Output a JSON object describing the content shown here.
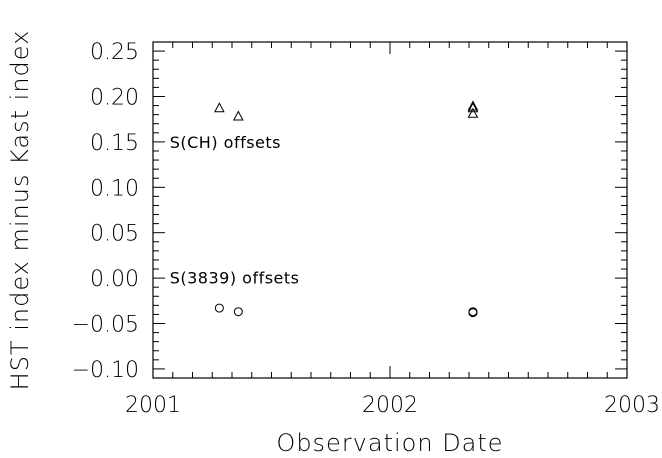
{
  "chart_data": {
    "type": "scatter",
    "title": "",
    "xlabel": "Observation Date",
    "ylabel": "HST index minus Kast index",
    "xlim": [
      2001,
      2003
    ],
    "ylim": [
      -0.11,
      0.26
    ],
    "x_ticks": [
      2001,
      2002,
      2003
    ],
    "x_tick_labels": [
      "2001",
      "2002",
      "2003"
    ],
    "y_ticks": [
      -0.1,
      -0.05,
      0.0,
      0.05,
      0.1,
      0.15,
      0.2,
      0.25
    ],
    "y_tick_labels": [
      "−0.10",
      "−0.05",
      "0.00",
      "0.05",
      "0.10",
      "0.15",
      "0.20",
      "0.25"
    ],
    "grid": false,
    "legend": "none",
    "annotations": [
      {
        "text": "S(CH) offsets",
        "x": 2001.29,
        "y": 0.152
      },
      {
        "text": "S(3839) offsets",
        "x": 2001.29,
        "y": 0.003
      }
    ],
    "series": [
      {
        "marker": "triangle",
        "points": [
          {
            "x": 2001.28,
            "y": 0.187
          },
          {
            "x": 2001.36,
            "y": 0.178
          },
          {
            "x": 2002.35,
            "y": 0.189
          },
          {
            "x": 2002.35,
            "y": 0.187
          },
          {
            "x": 2002.35,
            "y": 0.181
          }
        ]
      },
      {
        "marker": "circle",
        "points": [
          {
            "x": 2001.28,
            "y": -0.033
          },
          {
            "x": 2001.36,
            "y": -0.037
          },
          {
            "x": 2002.35,
            "y": -0.037
          },
          {
            "x": 2002.35,
            "y": -0.038
          },
          {
            "x": 2002.35,
            "y": -0.038
          }
        ]
      }
    ]
  }
}
